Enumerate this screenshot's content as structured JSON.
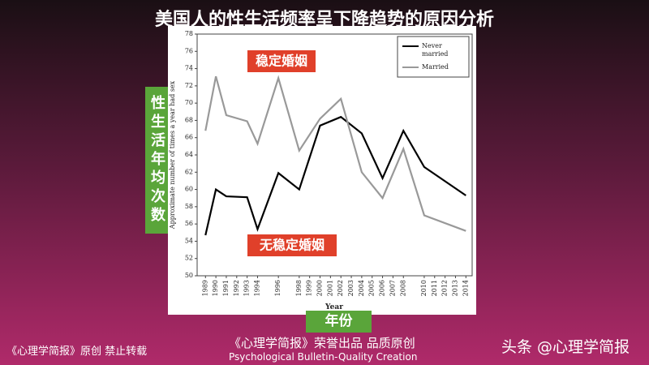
{
  "header": {
    "title": "美国人的性生活频率呈下降趋势的原因分析"
  },
  "side_labels": {
    "y": "性生活年均次数",
    "x": "年份"
  },
  "footer": {
    "left": "《心理学简报》原创 禁止转载",
    "center": "《心理学简报》荣誉出品 品质原创",
    "center_en": "Psychological Bulletin-Quality Creation",
    "right": "头条 @心理学简报"
  },
  "chart_data": {
    "type": "line",
    "xlabel": "Year",
    "ylabel": "Approximate number of times a year had sex",
    "x": [
      1989,
      1990,
      1991,
      1993,
      1994,
      1996,
      1998,
      2000,
      2002,
      2004,
      2006,
      2008,
      2010,
      2014
    ],
    "series": [
      {
        "name": "Never married",
        "color": "#000000",
        "values": [
          54.7,
          60.0,
          59.2,
          59.1,
          55.4,
          61.9,
          60.0,
          67.4,
          68.4,
          66.5,
          61.3,
          66.8,
          62.6,
          59.3
        ]
      },
      {
        "name": "Married",
        "color": "#999999",
        "values": [
          66.8,
          73.1,
          68.6,
          67.9,
          65.3,
          72.9,
          64.5,
          68.2,
          70.5,
          62.0,
          59.0,
          64.7,
          57.0,
          55.2
        ]
      }
    ],
    "annotations": [
      "稳定婚姻",
      "无稳定婚姻"
    ],
    "xlim": [
      1988.2,
      2014.6
    ],
    "xticks": [
      1989,
      1990,
      1991,
      1992,
      1993,
      1994,
      1996,
      1998,
      1999,
      2000,
      2001,
      2002,
      2003,
      2004,
      2005,
      2006,
      2007,
      2008,
      2010,
      2011,
      2012,
      2013,
      2014
    ],
    "ylim": [
      50,
      78
    ],
    "yticks": [
      50,
      52,
      54,
      56,
      58,
      60,
      62,
      64,
      66,
      68,
      70,
      72,
      74,
      76,
      78
    ],
    "legend": "upper right"
  }
}
